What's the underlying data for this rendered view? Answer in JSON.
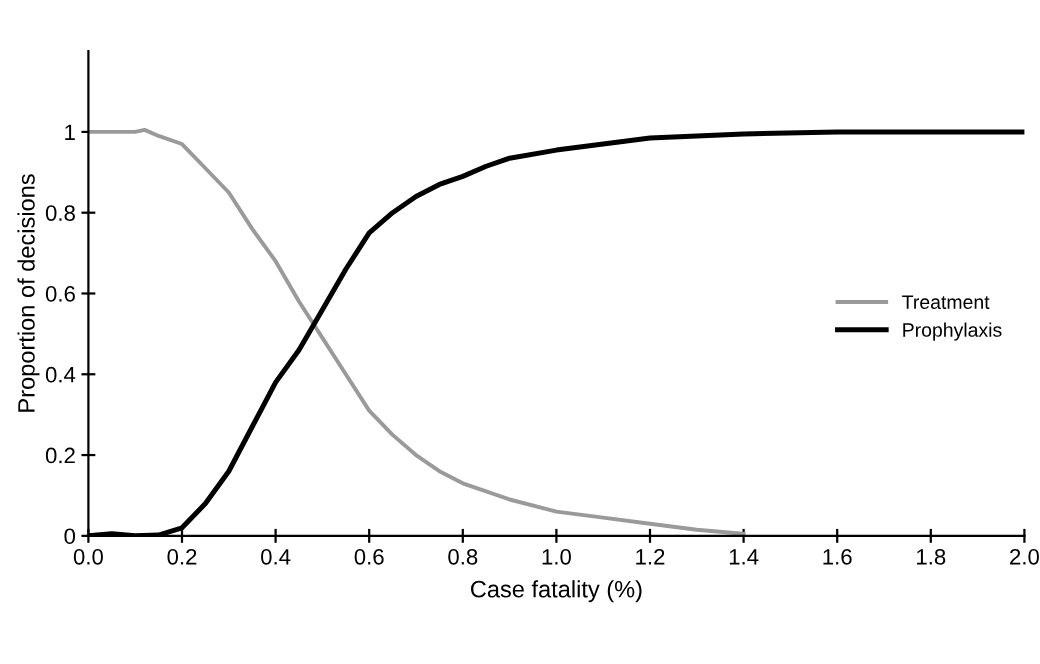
{
  "chart_data": {
    "type": "line",
    "xlabel": "Case fatality (%)",
    "ylabel": "Proportion of decisions",
    "xlim": [
      0,
      2.0
    ],
    "ylim": [
      0,
      1.2
    ],
    "xticks": [
      {
        "value": 0,
        "label": "0.0"
      },
      {
        "value": 0.2,
        "label": "0.2"
      },
      {
        "value": 0.4,
        "label": "0.4"
      },
      {
        "value": 0.6,
        "label": "0.6"
      },
      {
        "value": 0.8,
        "label": "0.8"
      },
      {
        "value": 1.0,
        "label": "1.0"
      },
      {
        "value": 1.2,
        "label": "1.2"
      },
      {
        "value": 1.4,
        "label": "1.4"
      },
      {
        "value": 1.6,
        "label": "1.6"
      },
      {
        "value": 1.8,
        "label": "1.8"
      },
      {
        "value": 2.0,
        "label": "2.0"
      }
    ],
    "yticks": [
      0,
      0.2,
      0.4,
      0.6,
      0.8,
      1
    ],
    "grid": false,
    "legend": "right",
    "marker": "none",
    "line_style": "solid",
    "series": [
      {
        "name": "Treatment",
        "color": "#9a9a9a",
        "x": [
          0,
          0.1,
          0.12,
          0.15,
          0.2,
          0.25,
          0.3,
          0.35,
          0.4,
          0.45,
          0.5,
          0.55,
          0.6,
          0.65,
          0.7,
          0.75,
          0.8,
          0.9,
          1.0,
          1.1,
          1.2,
          1.3,
          1.4
        ],
        "values": [
          1,
          1,
          1.005,
          0.99,
          0.97,
          0.91,
          0.85,
          0.76,
          0.68,
          0.58,
          0.49,
          0.4,
          0.31,
          0.25,
          0.2,
          0.16,
          0.13,
          0.09,
          0.06,
          0.045,
          0.03,
          0.015,
          0.005
        ]
      },
      {
        "name": "Prophylaxis",
        "color": "#000000",
        "x": [
          0,
          0.05,
          0.1,
          0.15,
          0.2,
          0.25,
          0.3,
          0.35,
          0.4,
          0.45,
          0.5,
          0.55,
          0.6,
          0.65,
          0.7,
          0.75,
          0.8,
          0.85,
          0.9,
          1.0,
          1.1,
          1.2,
          1.3,
          1.4,
          1.6,
          2.0
        ],
        "values": [
          0,
          0.005,
          0,
          0.002,
          0.02,
          0.08,
          0.16,
          0.27,
          0.38,
          0.46,
          0.56,
          0.66,
          0.75,
          0.8,
          0.84,
          0.87,
          0.89,
          0.915,
          0.935,
          0.955,
          0.97,
          0.985,
          0.99,
          0.995,
          1.0,
          1.0
        ]
      }
    ]
  }
}
